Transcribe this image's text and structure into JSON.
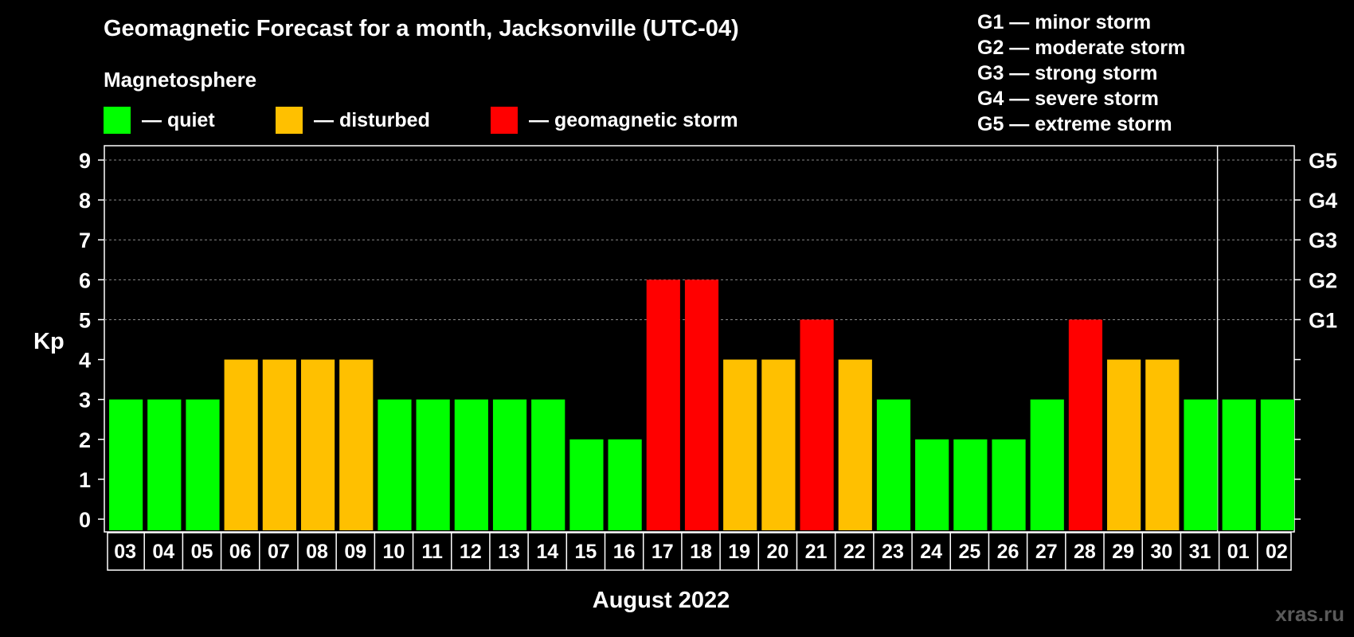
{
  "title": "Geomagnetic Forecast for a month, Jacksonville (UTC-04)",
  "legend": {
    "heading": "Magnetosphere",
    "items": [
      {
        "key": "quiet",
        "label": "— quiet",
        "color": "#00ff00"
      },
      {
        "key": "disturbed",
        "label": "— disturbed",
        "color": "#ffc000"
      },
      {
        "key": "storm",
        "label": "— geomagnetic storm",
        "color": "#ff0000"
      }
    ]
  },
  "storm_scale": [
    "G1 — minor storm",
    "G2 — moderate storm",
    "G3 — strong storm",
    "G4 — severe storm",
    "G5 — extreme storm"
  ],
  "watermark": "xras.ru",
  "chart_data": {
    "type": "bar",
    "ylabel": "Kp",
    "xlabel": "August 2022",
    "ylim": [
      0,
      9
    ],
    "y_ticks": [
      0,
      1,
      2,
      3,
      4,
      5,
      6,
      7,
      8,
      9
    ],
    "grid": "dashed horizontal lines at 5–9",
    "right_axis_labels": [
      {
        "value": 5,
        "label": "G1"
      },
      {
        "value": 6,
        "label": "G2"
      },
      {
        "value": 7,
        "label": "G3"
      },
      {
        "value": 8,
        "label": "G4"
      },
      {
        "value": 9,
        "label": "G5"
      }
    ],
    "categories": [
      "03",
      "04",
      "05",
      "06",
      "07",
      "08",
      "09",
      "10",
      "11",
      "12",
      "13",
      "14",
      "15",
      "16",
      "17",
      "18",
      "19",
      "20",
      "21",
      "22",
      "23",
      "24",
      "25",
      "26",
      "27",
      "28",
      "29",
      "30",
      "31",
      "01",
      "02"
    ],
    "values": [
      3,
      3,
      3,
      4,
      4,
      4,
      4,
      3,
      3,
      3,
      3,
      3,
      2,
      2,
      6,
      6,
      4,
      4,
      5,
      4,
      3,
      2,
      2,
      2,
      3,
      5,
      4,
      4,
      3,
      3,
      3
    ],
    "levels": [
      "quiet",
      "quiet",
      "quiet",
      "disturbed",
      "disturbed",
      "disturbed",
      "disturbed",
      "quiet",
      "quiet",
      "quiet",
      "quiet",
      "quiet",
      "quiet",
      "quiet",
      "storm",
      "storm",
      "disturbed",
      "disturbed",
      "storm",
      "disturbed",
      "quiet",
      "quiet",
      "quiet",
      "quiet",
      "quiet",
      "storm",
      "disturbed",
      "disturbed",
      "quiet",
      "quiet",
      "quiet"
    ],
    "month_divider_after": "31"
  }
}
